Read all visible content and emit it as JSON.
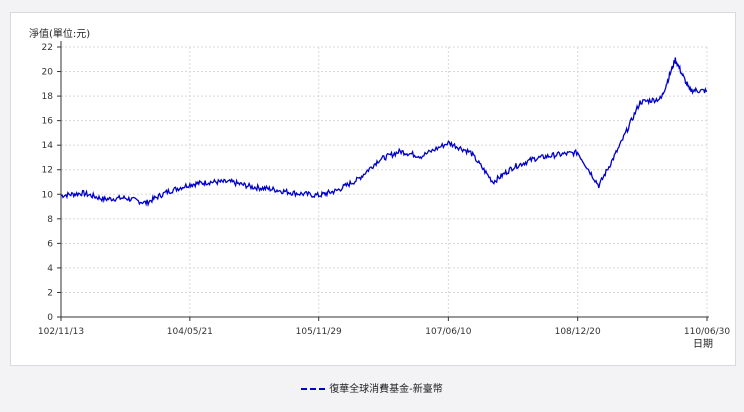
{
  "chart_data": {
    "type": "line",
    "ylabel": "淨值(單位:元)",
    "xlabel": "日期",
    "ylim": [
      0,
      22
    ],
    "yticks": [
      0,
      2,
      4,
      6,
      8,
      10,
      12,
      14,
      16,
      18,
      20,
      22
    ],
    "grid": true,
    "legend": "bottom-center",
    "x_tick_labels": [
      "102/11/13",
      "104/05/21",
      "105/11/29",
      "107/06/10",
      "108/12/20",
      "110/06/30"
    ],
    "series": [
      {
        "name": "復華全球消費基金-新臺幣",
        "color": "#0000cc",
        "x": [
          "102/11/13",
          "103/02/15",
          "103/05/15",
          "103/08/15",
          "103/11/15",
          "104/02/15",
          "104/05/21",
          "104/08/15",
          "104/11/15",
          "105/02/15",
          "105/05/15",
          "105/08/15",
          "105/11/29",
          "106/02/15",
          "106/05/15",
          "106/08/15",
          "106/11/15",
          "107/02/15",
          "107/06/10",
          "107/09/15",
          "107/12/20",
          "108/03/15",
          "108/06/15",
          "108/09/15",
          "108/12/20",
          "109/03/20",
          "109/06/15",
          "109/09/15",
          "109/12/15",
          "110/02/15",
          "110/04/15",
          "110/06/30"
        ],
        "y": [
          9.9,
          10.1,
          9.6,
          9.7,
          9.3,
          10.2,
          10.8,
          11.0,
          11.0,
          10.6,
          10.4,
          10.1,
          9.9,
          10.3,
          11.2,
          12.8,
          13.5,
          13.1,
          14.2,
          13.4,
          11.0,
          12.2,
          12.9,
          13.2,
          13.4,
          10.7,
          13.8,
          17.5,
          17.8,
          21.0,
          18.5,
          18.4
        ]
      }
    ]
  }
}
